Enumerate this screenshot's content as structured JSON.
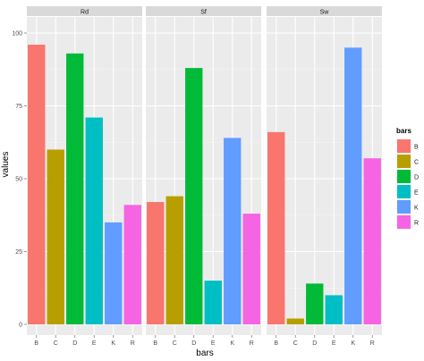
{
  "chart_data": {
    "type": "bar",
    "facets": [
      "Rd",
      "Sf",
      "Sw"
    ],
    "categories": [
      "B",
      "C",
      "D",
      "E",
      "K",
      "R"
    ],
    "series": [
      {
        "facet": "Rd",
        "values": [
          96,
          60,
          93,
          71,
          35,
          41
        ]
      },
      {
        "facet": "Sf",
        "values": [
          42,
          44,
          88,
          15,
          64,
          38
        ]
      },
      {
        "facet": "Sw",
        "values": [
          66,
          2,
          14,
          10,
          95,
          57
        ]
      }
    ],
    "xlabel": "bars",
    "ylabel": "values",
    "ylim": [
      0,
      100
    ],
    "yticks": [
      0,
      25,
      50,
      75,
      100
    ],
    "grid": true,
    "legend": {
      "title": "bars",
      "placement": "right",
      "items": [
        "B",
        "C",
        "D",
        "E",
        "K",
        "R"
      ]
    },
    "colors": {
      "B": "#F8766D",
      "C": "#B79F00",
      "D": "#00BA38",
      "E": "#00BFC4",
      "K": "#619CFF",
      "R": "#F564E3"
    },
    "panel_background": "#EBEBEB",
    "strip_background": "#D9D9D9"
  }
}
